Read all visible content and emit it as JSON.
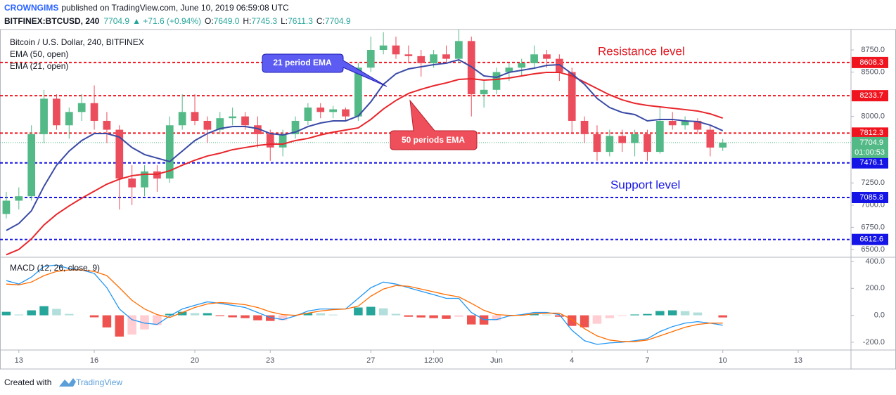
{
  "header": {
    "author": "CROWNGIMS",
    "published": "published on TradingView.com, June 10, 2019 06:59:08 UTC",
    "symbol": "BITFINEX:BTCUSD, 240",
    "price": "7704.9",
    "change": "▲ +71.6 (+0.94%)",
    "ohlc": [
      {
        "key": "O:",
        "value": "7649.0"
      },
      {
        "key": "H:",
        "value": "7745.3"
      },
      {
        "key": "L:",
        "value": "7611.3"
      },
      {
        "key": "C:",
        "value": "7704.9"
      }
    ]
  },
  "footer": {
    "created": "Created with",
    "brand": "TradingView"
  },
  "chart_data": [
    {
      "type": "candlestick",
      "legend": "Bitcoin / U.S. Dollar, 240, BITFINEX",
      "up_color": "#53b987",
      "down_color": "#eb4d5c",
      "open": [
        6900,
        7050,
        7100,
        7800,
        8200,
        7900,
        8050,
        8150,
        7950,
        7850,
        7300,
        7200,
        7380,
        7300,
        7900,
        8050,
        7950,
        7850,
        7980,
        8000,
        7900,
        7800,
        7650,
        7800,
        7950,
        8100,
        8050,
        8080,
        8000,
        8550,
        8750,
        8800,
        8700,
        8680,
        8600,
        8700,
        8650,
        8850,
        8250,
        8300,
        8500,
        8550,
        8600,
        8700,
        8650,
        8500,
        7950,
        7800,
        7600,
        7780,
        7700,
        7800,
        7600,
        7950,
        7900,
        7950,
        7850,
        7649.0
      ],
      "high": [
        7150,
        7200,
        7900,
        8300,
        8250,
        8100,
        8250,
        8350,
        8050,
        7900,
        7450,
        7450,
        7450,
        8000,
        8250,
        8250,
        8000,
        8050,
        8100,
        8050,
        8000,
        7850,
        7850,
        8000,
        8150,
        8150,
        8120,
        8100,
        8600,
        8900,
        8950,
        8900,
        8800,
        8750,
        8750,
        8800,
        9000,
        8900,
        8400,
        8550,
        8600,
        8650,
        8800,
        8750,
        8700,
        8550,
        8000,
        7900,
        7850,
        7850,
        7850,
        7850,
        8100,
        8050,
        8000,
        7980,
        7900,
        7745.3
      ],
      "low": [
        6850,
        6950,
        7050,
        7700,
        7850,
        7750,
        7950,
        7850,
        7700,
        6950,
        7000,
        7100,
        7150,
        7250,
        7850,
        7900,
        7700,
        7800,
        7900,
        7850,
        7650,
        7500,
        7550,
        7750,
        7900,
        7980,
        7980,
        7950,
        7950,
        8500,
        8700,
        8650,
        8600,
        8450,
        8550,
        8600,
        8600,
        8000,
        8100,
        8250,
        8400,
        8450,
        8550,
        8550,
        8400,
        7800,
        7700,
        7500,
        7550,
        7600,
        7550,
        7500,
        7580,
        7850,
        7850,
        7800,
        7550,
        7611.3
      ],
      "close": [
        7050,
        7100,
        7800,
        8200,
        7900,
        8050,
        8150,
        7950,
        7850,
        7300,
        7200,
        7380,
        7300,
        7900,
        8050,
        7950,
        7850,
        7980,
        8000,
        7900,
        7800,
        7650,
        7800,
        7950,
        8100,
        8050,
        8080,
        8000,
        8550,
        8750,
        8800,
        8700,
        8680,
        8600,
        8700,
        8650,
        8850,
        8250,
        8300,
        8500,
        8550,
        8600,
        8700,
        8650,
        8500,
        7950,
        7800,
        7600,
        7780,
        7700,
        7800,
        7600,
        7950,
        7900,
        7950,
        7850,
        7649,
        7704.9
      ],
      "lines": [
        {
          "name": "EMA (50, open)",
          "color": "#e8262b",
          "values": [
            6440,
            6500,
            6619,
            6777,
            6896,
            6991,
            7078,
            7157,
            7236,
            7292,
            7332,
            7348,
            7348,
            7387,
            7450,
            7506,
            7554,
            7585,
            7625,
            7649,
            7672,
            7688,
            7688,
            7728,
            7752,
            7791,
            7823,
            7847,
            7871,
            7966,
            8084,
            8180,
            8259,
            8306,
            8346,
            8378,
            8417,
            8425,
            8409,
            8417,
            8433,
            8457,
            8481,
            8497,
            8497,
            8457,
            8386,
            8314,
            8243,
            8187,
            8148,
            8124,
            8108,
            8092,
            8077,
            8061,
            8029,
            7981
          ]
        },
        {
          "name": "EMA (21, open)",
          "color": "#3a4aa6",
          "values": [
            6714,
            6793,
            6936,
            7213,
            7450,
            7609,
            7728,
            7807,
            7807,
            7767,
            7649,
            7570,
            7530,
            7490,
            7609,
            7728,
            7807,
            7863,
            7886,
            7886,
            7863,
            7807,
            7791,
            7823,
            7886,
            7926,
            7950,
            7950,
            8005,
            8164,
            8362,
            8481,
            8536,
            8560,
            8584,
            8600,
            8639,
            8560,
            8457,
            8441,
            8497,
            8520,
            8544,
            8576,
            8584,
            8481,
            8362,
            8203,
            8100,
            8045,
            8021,
            7950,
            7966,
            7966,
            7950,
            7942,
            7902,
            7839
          ]
        }
      ],
      "levels": [
        {
          "value": 8608.3,
          "color": "#f0141e"
        },
        {
          "value": 8233.7,
          "color": "#f0141e"
        },
        {
          "value": 7812.3,
          "color": "#f0141e"
        },
        {
          "value": 7476.1,
          "color": "#1414e6"
        },
        {
          "value": 7085.8,
          "color": "#1414e6"
        },
        {
          "value": 6612.6,
          "color": "#1414e6"
        }
      ],
      "last_price": {
        "value": 7704.9,
        "countdown": "01:00:53",
        "color": "#53b987"
      },
      "annotations": [
        "21 period EMA",
        "50 periods EMA",
        "Resistance level",
        "Support level"
      ],
      "xlim": [
        -0.5,
        67.2
      ],
      "xticks": [
        {
          "value": 1,
          "label": "13"
        },
        {
          "value": 7,
          "label": "16"
        },
        {
          "value": 15,
          "label": "20"
        },
        {
          "value": 21,
          "label": "23"
        },
        {
          "value": 29,
          "label": "27"
        },
        {
          "value": 34,
          "label": "12:00"
        },
        {
          "value": 39,
          "label": "Jun"
        },
        {
          "value": 45,
          "label": "4"
        },
        {
          "value": 51,
          "label": "7"
        },
        {
          "value": 57,
          "label": "10"
        },
        {
          "value": 63,
          "label": "13"
        }
      ],
      "ylim": [
        6420,
        8980
      ],
      "yticks": [
        {
          "value": 6500,
          "label": "6500.0"
        },
        {
          "value": 6750,
          "label": "6750.0"
        },
        {
          "value": 7000,
          "label": "7000.0"
        },
        {
          "value": 7250,
          "label": "7250.0"
        },
        {
          "value": 8000,
          "label": "8000.0"
        },
        {
          "value": 8500,
          "label": "8500.0"
        },
        {
          "value": 8750,
          "label": "8750.0"
        }
      ]
    },
    {
      "type": "macd",
      "title": "MACD (12, 26, close, 9)",
      "series": [
        {
          "color": "#2196f3",
          "values": [
            258,
            232,
            284,
            363,
            374,
            347,
            337,
            311,
            205,
            47,
            -32,
            -58,
            -68,
            -5,
            47,
            74,
            100,
            89,
            74,
            58,
            21,
            -16,
            -32,
            -5,
            32,
            47,
            47,
            47,
            126,
            205,
            247,
            232,
            205,
            179,
            153,
            126,
            126,
            21,
            -32,
            -32,
            -5,
            5,
            21,
            21,
            5,
            -111,
            -189,
            -216,
            -205,
            -200,
            -189,
            -174,
            -121,
            -84,
            -58,
            -47,
            -58,
            -74
          ]
        },
        {
          "color": "#ff6d00",
          "values": [
            232,
            226,
            247,
            295,
            326,
            337,
            337,
            326,
            295,
            205,
            111,
            47,
            5,
            -16,
            21,
            58,
            84,
            95,
            89,
            79,
            58,
            26,
            5,
            0,
            16,
            32,
            42,
            47,
            68,
            142,
            195,
            221,
            216,
            195,
            174,
            153,
            137,
            89,
            37,
            5,
            0,
            0,
            11,
            16,
            16,
            -32,
            -100,
            -153,
            -184,
            -195,
            -195,
            -184,
            -153,
            -121,
            -89,
            -68,
            -58,
            -58
          ]
        }
      ],
      "histogram": [
        26,
        6,
        37,
        68,
        48,
        10,
        0,
        -15,
        -90,
        -158,
        -143,
        -105,
        -73,
        11,
        26,
        16,
        16,
        -6,
        -15,
        -21,
        -37,
        -42,
        -37,
        -5,
        16,
        15,
        5,
        0,
        58,
        63,
        52,
        11,
        -11,
        -16,
        -21,
        -27,
        -11,
        -68,
        -69,
        -37,
        -5,
        5,
        10,
        5,
        -11,
        -79,
        -89,
        -63,
        -21,
        -5,
        6,
        10,
        32,
        37,
        31,
        21,
        0,
        -16
      ],
      "hist_colors": {
        "up_strong": "#26a69a",
        "up_weak": "#b2dfdb",
        "down_strong": "#ef5350",
        "down_weak": "#ffcdd2"
      },
      "ylim": [
        -258,
        421
      ],
      "yticks": [
        {
          "value": -200,
          "label": "-200.0"
        },
        {
          "value": 0,
          "label": "0.0"
        },
        {
          "value": 200,
          "label": "200.0"
        },
        {
          "value": 400,
          "label": "400.0"
        }
      ]
    }
  ]
}
